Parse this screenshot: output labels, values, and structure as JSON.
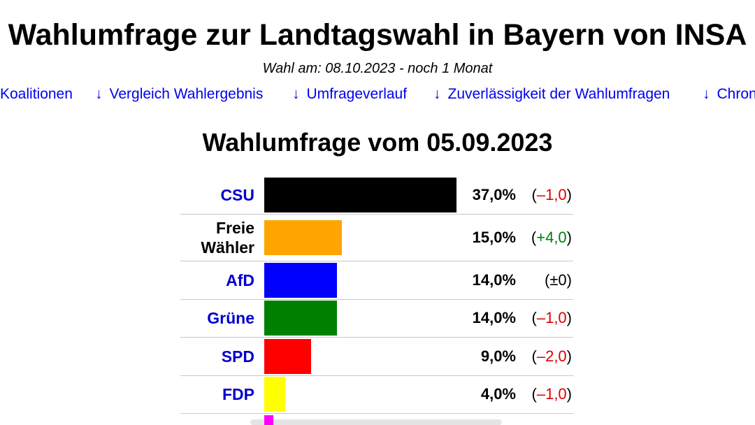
{
  "page": {
    "title": "Wahlumfrage zur Landtagswahl in Bayern von INSA",
    "subtitle": "Wahl am: 08.10.2023 - noch 1 Monat"
  },
  "nav": {
    "arrow": "↓",
    "items": [
      "Koalitionen",
      "Vergleich Wahlergebnis",
      "Umfrageverlauf",
      "Zuverlässigkeit der Wahlumfragen",
      "Chron"
    ]
  },
  "chart_data": {
    "type": "bar",
    "orientation": "horizontal",
    "title": "Wahlumfrage vom 05.09.2023",
    "categories": [
      "CSU",
      "Freie Wähler",
      "AfD",
      "Grüne",
      "SPD",
      "FDP"
    ],
    "values": [
      37.0,
      15.0,
      14.0,
      14.0,
      9.0,
      4.0
    ],
    "value_labels": [
      "37,0%",
      "15,0%",
      "14,0%",
      "14,0%",
      "9,0%",
      "4,0%"
    ],
    "changes": [
      -1.0,
      4.0,
      0,
      -1.0,
      -2.0,
      -1.0
    ],
    "change_labels": [
      "(–1,0)",
      "(+4,0)",
      "(±0)",
      "(–1,0)",
      "(–2,0)",
      "(–1,0)"
    ],
    "colors": [
      "#000000",
      "#ffa500",
      "#0000ff",
      "#008000",
      "#ff0000",
      "#ffff00"
    ],
    "change_colors": {
      "negative": "#dd0000",
      "positive": "#008000",
      "neutral": "#000000"
    },
    "xlim": [
      0,
      37.0
    ],
    "grid": false,
    "legend": "none"
  }
}
